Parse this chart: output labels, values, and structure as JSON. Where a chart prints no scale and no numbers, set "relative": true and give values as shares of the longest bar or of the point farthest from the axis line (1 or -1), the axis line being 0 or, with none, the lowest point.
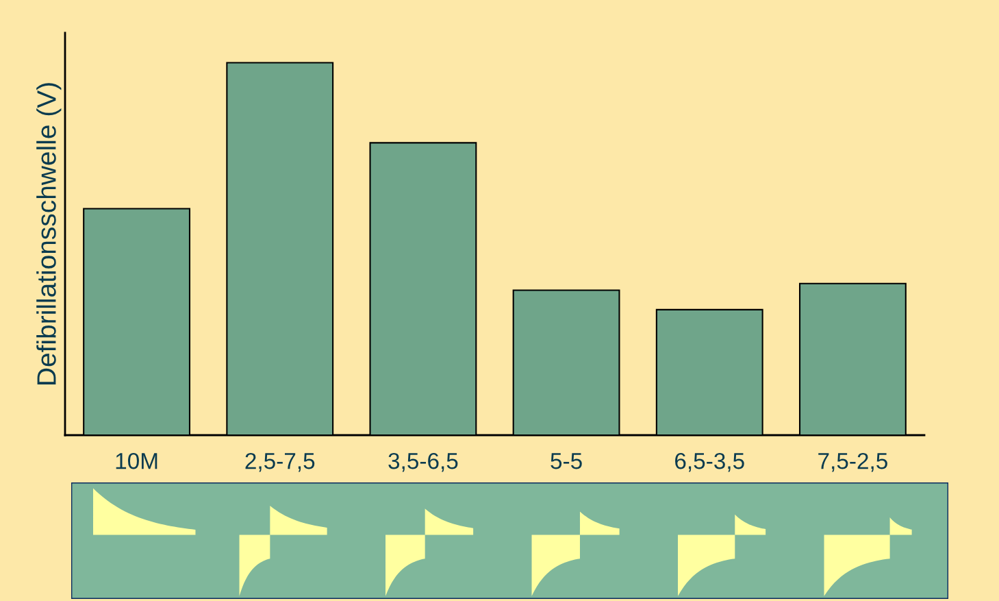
{
  "chart_data": {
    "type": "bar",
    "ylabel": "Defibrillationsschwelle (V)",
    "relative": true,
    "categories": [
      "10M",
      "2,5-7,5",
      "3,5-6,5",
      "5-5",
      "6,5-3,5",
      "7,5-2,5"
    ],
    "values": [
      0.608,
      1,
      0.785,
      0.389,
      0.337,
      0.407
    ],
    "color": "#6fa58a",
    "grid": false,
    "legend": false
  }
}
